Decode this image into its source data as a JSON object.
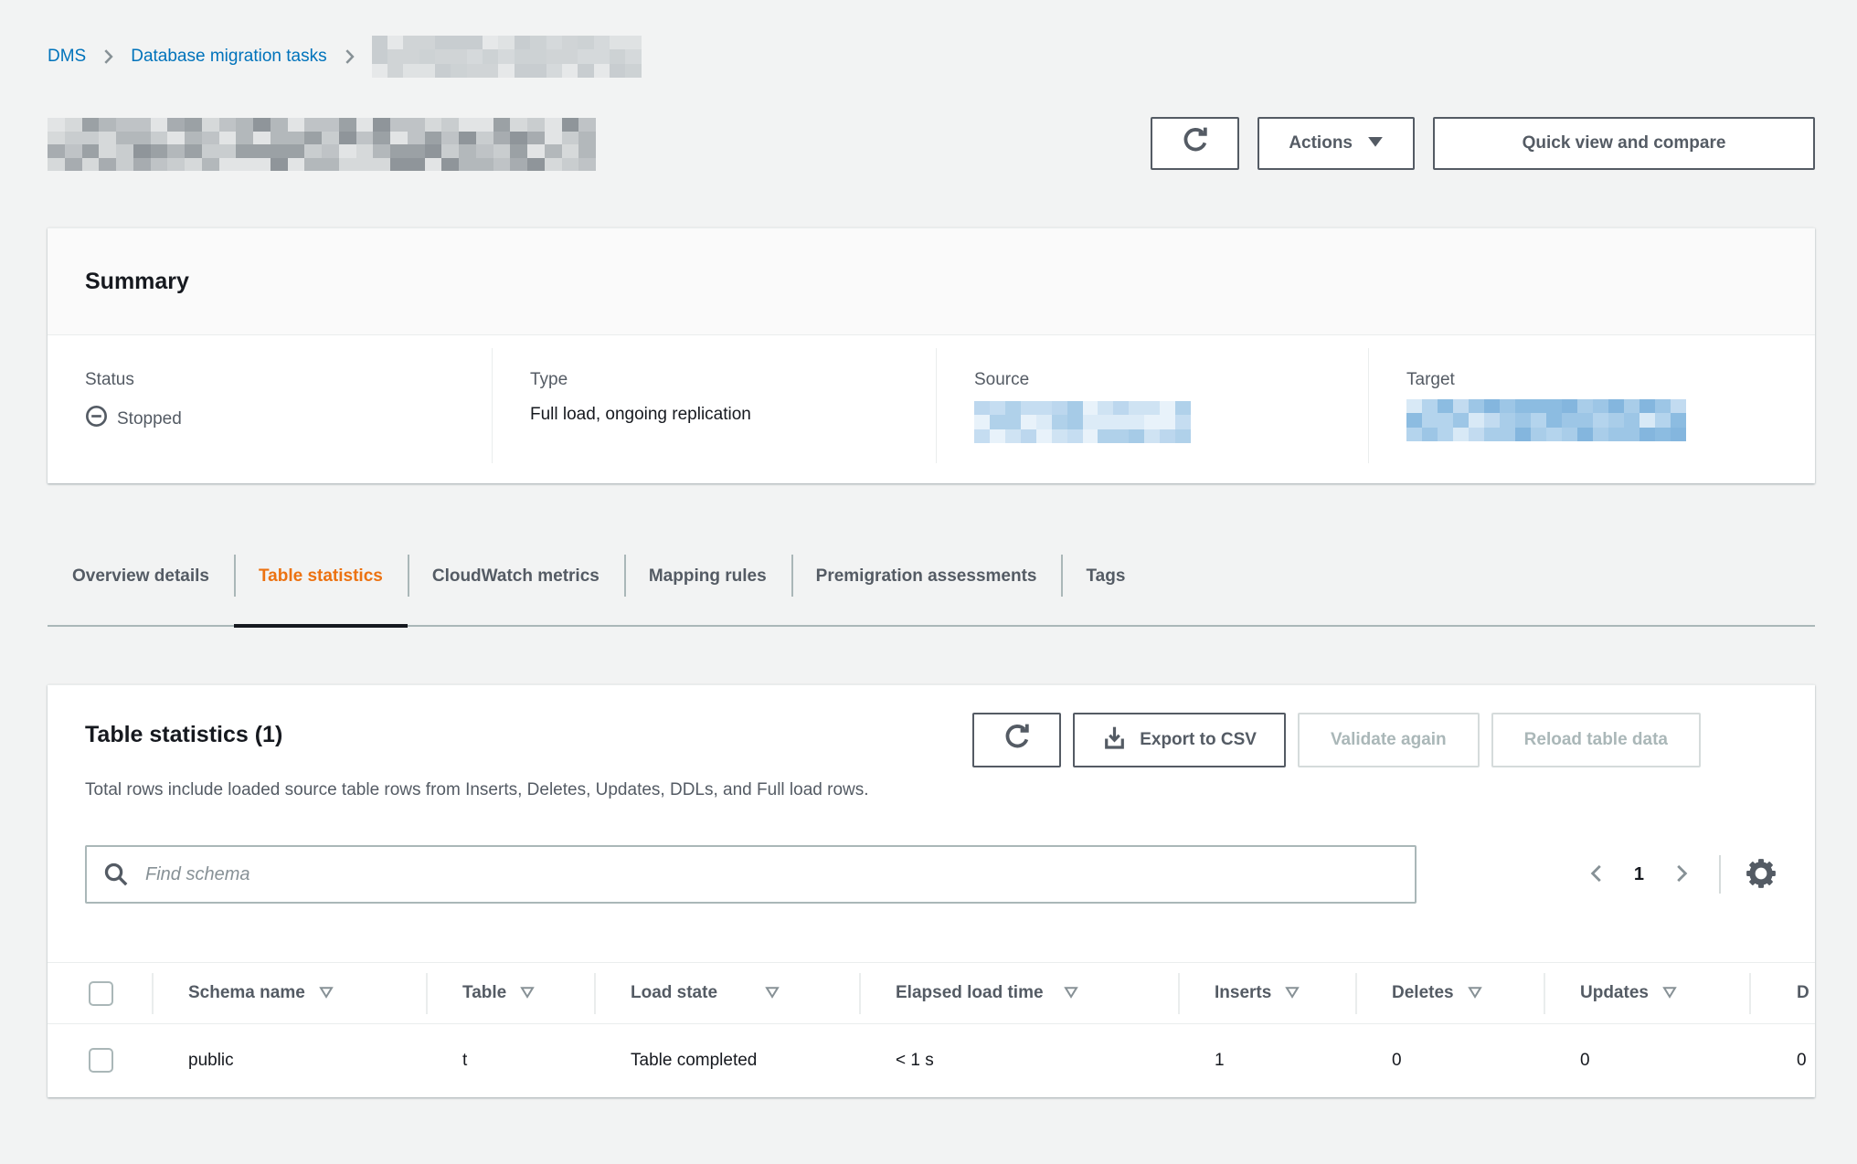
{
  "colors": {
    "accent_orange": "#ec7211",
    "link_blue": "#0073bb",
    "text_dark": "#16191f",
    "text_secondary": "#545b64",
    "muted": "#879196",
    "border_light": "#eaeded",
    "border_mid": "#aab7b8",
    "page_bg": "#f2f3f3",
    "disabled": "#aab7b8"
  },
  "breadcrumb": {
    "items": [
      {
        "label": "DMS"
      },
      {
        "label": "Database migration tasks"
      },
      {
        "label": "",
        "redacted": true
      }
    ]
  },
  "page_header": {
    "title_redacted": true,
    "refresh_button": {
      "icon": "refresh-icon"
    },
    "actions_button": {
      "label": "Actions",
      "icon": "caret-down-icon"
    },
    "quick_view_button": {
      "label": "Quick view and compare"
    }
  },
  "summary": {
    "title": "Summary",
    "fields": [
      {
        "label": "Status",
        "value": "Stopped",
        "icon": "stopped-icon"
      },
      {
        "label": "Type",
        "value": "Full load, ongoing replication"
      },
      {
        "label": "Source",
        "value_redacted": true
      },
      {
        "label": "Target",
        "value_redacted": true
      }
    ]
  },
  "tabs": {
    "items": [
      {
        "label": "Overview details",
        "active": false
      },
      {
        "label": "Table statistics",
        "active": true
      },
      {
        "label": "CloudWatch metrics",
        "active": false
      },
      {
        "label": "Mapping rules",
        "active": false
      },
      {
        "label": "Premigration assessments",
        "active": false
      },
      {
        "label": "Tags",
        "active": false
      }
    ]
  },
  "table_section": {
    "title": "Table statistics (1)",
    "description": "Total rows include loaded source table rows from Inserts, Deletes, Updates, DDLs, and Full load rows.",
    "toolbar": {
      "refresh_icon": "refresh-icon",
      "export_label": "Export to CSV",
      "export_icon": "download-icon",
      "validate_label": "Validate again",
      "validate_enabled": false,
      "reload_label": "Reload table data",
      "reload_enabled": false
    },
    "search": {
      "placeholder": "Find schema",
      "value": ""
    },
    "pagination": {
      "current_page": "1",
      "prev_icon": "chevron-left-icon",
      "next_icon": "chevron-right-icon",
      "settings_icon": "gear-icon"
    },
    "table": {
      "columns": [
        {
          "label": "Schema name",
          "sortable": true
        },
        {
          "label": "Table",
          "sortable": true
        },
        {
          "label": "Load state",
          "sortable": true
        },
        {
          "label": "Elapsed load time",
          "sortable": true
        },
        {
          "label": "Inserts",
          "sortable": true
        },
        {
          "label": "Deletes",
          "sortable": true
        },
        {
          "label": "Updates",
          "sortable": true
        },
        {
          "label": "D",
          "sortable": false,
          "clipped": true
        }
      ],
      "rows": [
        {
          "schema": "public",
          "table": "t",
          "load_state": "Table completed",
          "elapsed": "< 1 s",
          "inserts": "1",
          "deletes": "0",
          "updates": "0",
          "last": "0"
        }
      ]
    }
  }
}
